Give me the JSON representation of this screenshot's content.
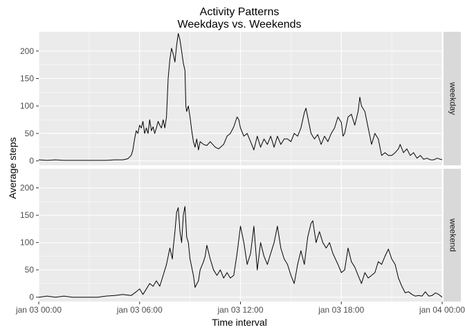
{
  "colors": {
    "panel_background": "#ebebeb",
    "grid_major": "#ffffff",
    "strip_background": "#d9d9d9",
    "line": "#000000",
    "tick_text": "#4d4d4d"
  },
  "chart_data": {
    "type": "line",
    "title": [
      "Activity Patterns",
      "Weekdays vs. Weekends"
    ],
    "xlabel": "Time interval",
    "ylabel": "Average steps",
    "x_unit": "hours since jan 03 00:00 (5-minute intervals)",
    "xlim": [
      0,
      24
    ],
    "ylim": [
      -8,
      235
    ],
    "x_ticks": [
      0,
      6,
      12,
      18,
      24
    ],
    "x_tick_labels": [
      "jan 03 00:00",
      "jan 03 06:00",
      "jan 03 12:00",
      "jan 03 18:00",
      "jan 04 00:00"
    ],
    "y_ticks": [
      0,
      50,
      100,
      150,
      200
    ],
    "y_tick_labels": [
      "0",
      "50",
      "100",
      "150",
      "200"
    ],
    "grid": true,
    "legend": "none",
    "panels": [
      {
        "strip": "weekday",
        "series": [
          {
            "points": [
              [
                0,
                2
              ],
              [
                0.5,
                1
              ],
              [
                1,
                2
              ],
              [
                1.5,
                1
              ],
              [
                2,
                1
              ],
              [
                2.5,
                1
              ],
              [
                3,
                1
              ],
              [
                3.5,
                1
              ],
              [
                4,
                1
              ],
              [
                4.5,
                2
              ],
              [
                5,
                2
              ],
              [
                5.3,
                4
              ],
              [
                5.5,
                10
              ],
              [
                5.6,
                20
              ],
              [
                5.7,
                40
              ],
              [
                5.8,
                55
              ],
              [
                5.9,
                50
              ],
              [
                6,
                65
              ],
              [
                6.1,
                60
              ],
              [
                6.2,
                72
              ],
              [
                6.3,
                50
              ],
              [
                6.4,
                60
              ],
              [
                6.5,
                50
              ],
              [
                6.6,
                75
              ],
              [
                6.7,
                55
              ],
              [
                6.8,
                62
              ],
              [
                6.9,
                50
              ],
              [
                7,
                60
              ],
              [
                7.1,
                72
              ],
              [
                7.2,
                65
              ],
              [
                7.3,
                60
              ],
              [
                7.4,
                75
              ],
              [
                7.5,
                60
              ],
              [
                7.6,
                80
              ],
              [
                7.7,
                150
              ],
              [
                7.8,
                185
              ],
              [
                7.9,
                205
              ],
              [
                8,
                195
              ],
              [
                8.1,
                180
              ],
              [
                8.2,
                210
              ],
              [
                8.3,
                232
              ],
              [
                8.4,
                220
              ],
              [
                8.5,
                200
              ],
              [
                8.6,
                178
              ],
              [
                8.7,
                165
              ],
              [
                8.75,
                100
              ],
              [
                8.8,
                90
              ],
              [
                8.9,
                100
              ],
              [
                9,
                80
              ],
              [
                9.1,
                55
              ],
              [
                9.2,
                35
              ],
              [
                9.3,
                25
              ],
              [
                9.4,
                40
              ],
              [
                9.5,
                20
              ],
              [
                9.6,
                35
              ],
              [
                9.8,
                30
              ],
              [
                10,
                28
              ],
              [
                10.2,
                35
              ],
              [
                10.5,
                25
              ],
              [
                10.7,
                22
              ],
              [
                11,
                30
              ],
              [
                11.2,
                45
              ],
              [
                11.4,
                50
              ],
              [
                11.6,
                62
              ],
              [
                11.8,
                80
              ],
              [
                11.9,
                75
              ],
              [
                12,
                60
              ],
              [
                12.2,
                45
              ],
              [
                12.4,
                50
              ],
              [
                12.6,
                35
              ],
              [
                12.8,
                20
              ],
              [
                13,
                45
              ],
              [
                13.2,
                25
              ],
              [
                13.4,
                40
              ],
              [
                13.6,
                30
              ],
              [
                13.8,
                45
              ],
              [
                14,
                25
              ],
              [
                14.2,
                45
              ],
              [
                14.4,
                30
              ],
              [
                14.6,
                40
              ],
              [
                14.8,
                40
              ],
              [
                15,
                35
              ],
              [
                15.2,
                50
              ],
              [
                15.4,
                45
              ],
              [
                15.6,
                60
              ],
              [
                15.8,
                88
              ],
              [
                15.9,
                96
              ],
              [
                16,
                80
              ],
              [
                16.2,
                50
              ],
              [
                16.4,
                40
              ],
              [
                16.6,
                48
              ],
              [
                16.8,
                30
              ],
              [
                17,
                45
              ],
              [
                17.2,
                35
              ],
              [
                17.4,
                50
              ],
              [
                17.6,
                60
              ],
              [
                17.8,
                80
              ],
              [
                18,
                70
              ],
              [
                18.1,
                45
              ],
              [
                18.2,
                50
              ],
              [
                18.4,
                80
              ],
              [
                18.6,
                85
              ],
              [
                18.8,
                65
              ],
              [
                19,
                90
              ],
              [
                19.1,
                116
              ],
              [
                19.2,
                100
              ],
              [
                19.4,
                90
              ],
              [
                19.6,
                60
              ],
              [
                19.8,
                30
              ],
              [
                20,
                50
              ],
              [
                20.2,
                40
              ],
              [
                20.4,
                10
              ],
              [
                20.6,
                15
              ],
              [
                20.8,
                10
              ],
              [
                21,
                10
              ],
              [
                21.2,
                15
              ],
              [
                21.4,
                22
              ],
              [
                21.5,
                30
              ],
              [
                21.7,
                15
              ],
              [
                21.9,
                22
              ],
              [
                22.1,
                10
              ],
              [
                22.3,
                15
              ],
              [
                22.5,
                5
              ],
              [
                22.7,
                10
              ],
              [
                22.9,
                3
              ],
              [
                23.1,
                5
              ],
              [
                23.3,
                2
              ],
              [
                23.5,
                2
              ],
              [
                23.7,
                5
              ],
              [
                24,
                2
              ]
            ]
          }
        ]
      },
      {
        "strip": "weekend",
        "series": [
          {
            "points": [
              [
                0,
                0
              ],
              [
                0.5,
                2
              ],
              [
                1,
                0
              ],
              [
                1.5,
                2
              ],
              [
                2,
                0
              ],
              [
                2.5,
                0
              ],
              [
                3,
                0
              ],
              [
                3.5,
                0
              ],
              [
                4,
                2
              ],
              [
                4.5,
                3
              ],
              [
                5,
                5
              ],
              [
                5.5,
                3
              ],
              [
                5.8,
                10
              ],
              [
                6,
                15
              ],
              [
                6.2,
                5
              ],
              [
                6.4,
                15
              ],
              [
                6.6,
                25
              ],
              [
                6.8,
                20
              ],
              [
                7,
                30
              ],
              [
                7.2,
                20
              ],
              [
                7.4,
                40
              ],
              [
                7.6,
                60
              ],
              [
                7.8,
                90
              ],
              [
                7.95,
                70
              ],
              [
                8,
                90
              ],
              [
                8.1,
                120
              ],
              [
                8.2,
                155
              ],
              [
                8.3,
                164
              ],
              [
                8.4,
                120
              ],
              [
                8.5,
                100
              ],
              [
                8.6,
                150
              ],
              [
                8.7,
                166
              ],
              [
                8.8,
                110
              ],
              [
                8.9,
                100
              ],
              [
                9,
                70
              ],
              [
                9.2,
                40
              ],
              [
                9.3,
                18
              ],
              [
                9.5,
                30
              ],
              [
                9.6,
                50
              ],
              [
                9.8,
                65
              ],
              [
                9.9,
                75
              ],
              [
                10,
                95
              ],
              [
                10.2,
                70
              ],
              [
                10.4,
                50
              ],
              [
                10.6,
                40
              ],
              [
                10.8,
                50
              ],
              [
                11,
                35
              ],
              [
                11.2,
                45
              ],
              [
                11.4,
                35
              ],
              [
                11.6,
                40
              ],
              [
                11.8,
                80
              ],
              [
                12,
                130
              ],
              [
                12.2,
                100
              ],
              [
                12.4,
                60
              ],
              [
                12.6,
                80
              ],
              [
                12.8,
                130
              ],
              [
                13,
                50
              ],
              [
                13.2,
                100
              ],
              [
                13.4,
                75
              ],
              [
                13.6,
                60
              ],
              [
                13.8,
                80
              ],
              [
                14,
                100
              ],
              [
                14.2,
                130
              ],
              [
                14.4,
                90
              ],
              [
                14.6,
                70
              ],
              [
                14.8,
                60
              ],
              [
                15,
                40
              ],
              [
                15.2,
                25
              ],
              [
                15.4,
                60
              ],
              [
                15.6,
                85
              ],
              [
                15.8,
                60
              ],
              [
                16,
                110
              ],
              [
                16.2,
                135
              ],
              [
                16.3,
                140
              ],
              [
                16.5,
                100
              ],
              [
                16.7,
                120
              ],
              [
                16.9,
                100
              ],
              [
                17.1,
                90
              ],
              [
                17.3,
                100
              ],
              [
                17.5,
                80
              ],
              [
                17.8,
                60
              ],
              [
                18,
                45
              ],
              [
                18.2,
                50
              ],
              [
                18.4,
                90
              ],
              [
                18.6,
                65
              ],
              [
                18.8,
                55
              ],
              [
                19,
                40
              ],
              [
                19.2,
                25
              ],
              [
                19.4,
                45
              ],
              [
                19.6,
                35
              ],
              [
                19.8,
                40
              ],
              [
                20,
                45
              ],
              [
                20.2,
                65
              ],
              [
                20.4,
                60
              ],
              [
                20.6,
                75
              ],
              [
                20.8,
                88
              ],
              [
                21,
                70
              ],
              [
                21.2,
                60
              ],
              [
                21.4,
                35
              ],
              [
                21.6,
                20
              ],
              [
                21.8,
                8
              ],
              [
                22,
                10
              ],
              [
                22.2,
                5
              ],
              [
                22.4,
                2
              ],
              [
                22.6,
                3
              ],
              [
                22.8,
                2
              ],
              [
                23,
                10
              ],
              [
                23.2,
                2
              ],
              [
                23.4,
                3
              ],
              [
                23.6,
                8
              ],
              [
                23.8,
                5
              ],
              [
                24,
                0
              ]
            ]
          }
        ]
      }
    ]
  }
}
